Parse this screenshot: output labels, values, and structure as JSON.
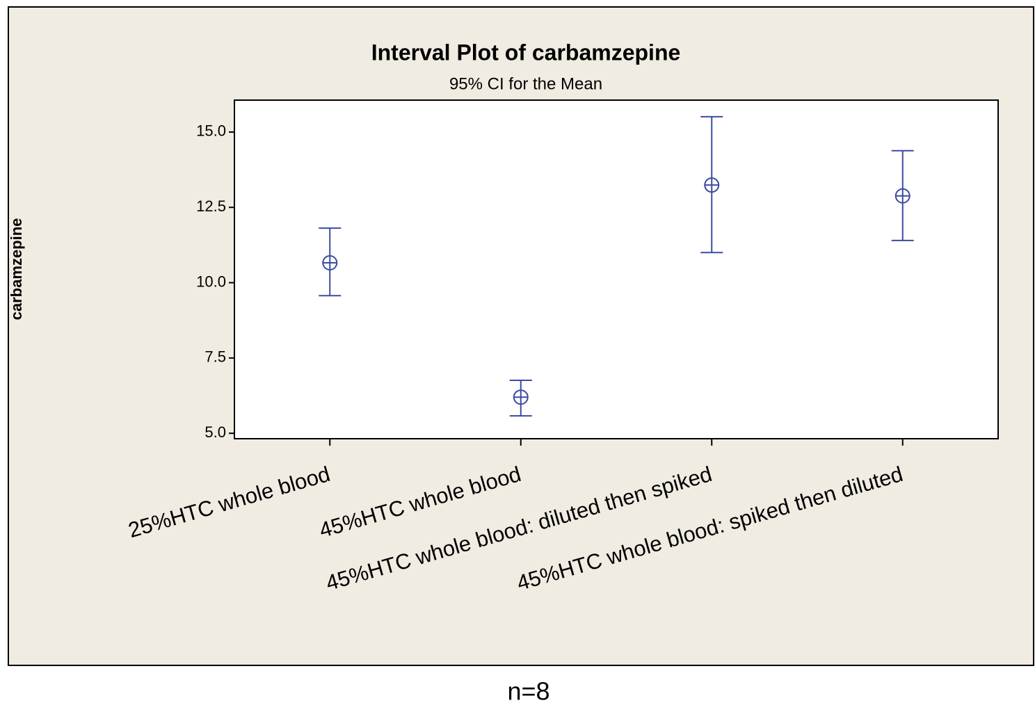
{
  "chart_data": {
    "type": "interval",
    "title": "Interval Plot of carbamzepine",
    "subtitle": "95% CI for the Mean",
    "y_label": "carbamzepine",
    "footnote": "n=8",
    "categories": [
      "25%HTC whole blood",
      "45%HTC whole blood",
      "45%HTC whole blood: diluted then spiked",
      "45%HTC whole blood: spiked then diluted"
    ],
    "series": [
      {
        "color": "#3b4ba0",
        "values": [
          10.66,
          6.2,
          13.24,
          12.88
        ],
        "ci_lower": [
          9.57,
          5.58,
          11.0,
          11.4
        ],
        "ci_upper": [
          11.81,
          6.76,
          15.51,
          14.38
        ]
      }
    ],
    "ylim": [
      4.82,
      16.06
    ],
    "yticks": [
      {
        "value": 5,
        "label": "5.0"
      },
      {
        "value": 7.5,
        "label": "7.5"
      },
      {
        "value": 10,
        "label": "10.0"
      },
      {
        "value": 12.5,
        "label": "12.5"
      },
      {
        "value": 15,
        "label": "15.0"
      }
    ]
  }
}
